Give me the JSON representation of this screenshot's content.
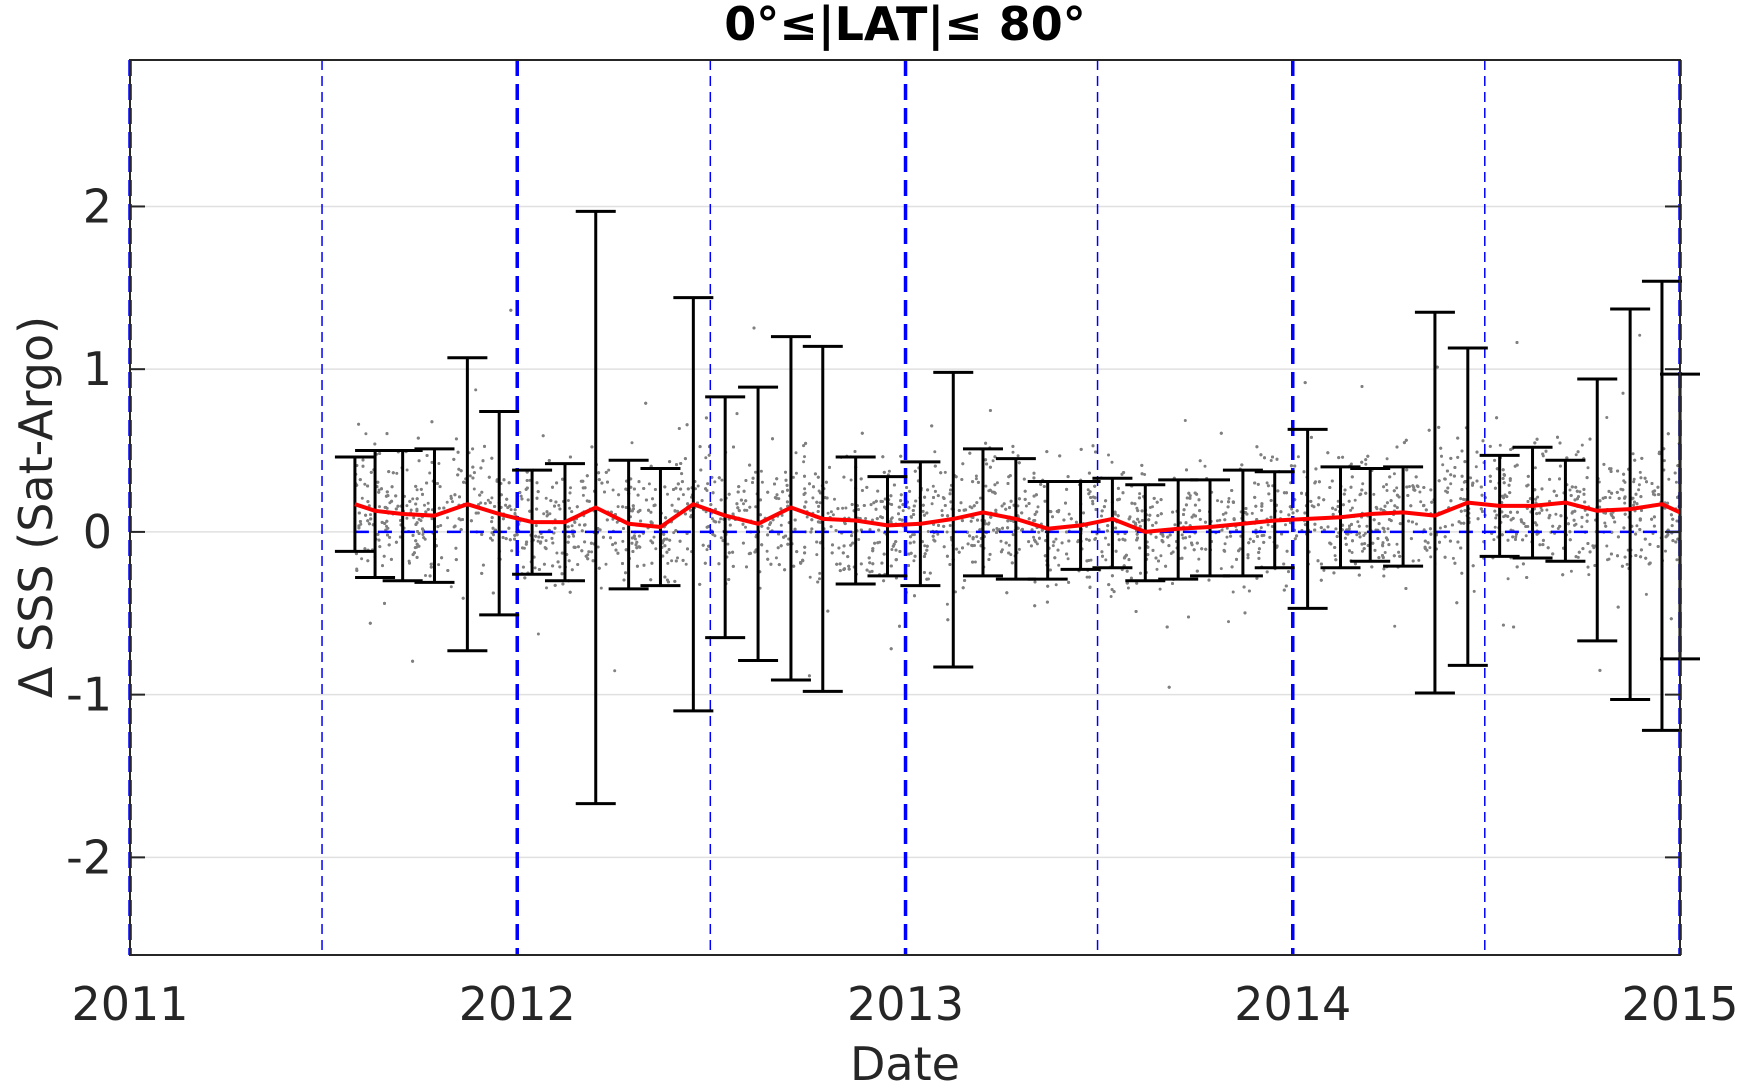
{
  "chart_data": {
    "type": "scatter",
    "title": "0°≤|LAT|≤ 80°",
    "xlabel": "Date",
    "ylabel": "Δ SSS (Sat-Argo)",
    "xlim": [
      "2011-01-01",
      "2015-01-01"
    ],
    "ylim": [
      -2.6,
      2.9
    ],
    "x_tick_labels": [
      "2011",
      "2012",
      "2013",
      "2014",
      "2015"
    ],
    "y_ticks": [
      -2,
      -1,
      0,
      1,
      2
    ],
    "y_tick_labels": [
      "-2",
      "-1",
      "0",
      "1",
      "2"
    ],
    "grid": "horizontal",
    "vertical_lines": {
      "color": "#0000ff",
      "style": "dashed",
      "years": [
        "2011-01-01",
        "2012-01-01",
        "2013-01-01",
        "2014-01-01",
        "2015-01-01"
      ],
      "half_years": [
        "2011-07-01",
        "2012-07-01",
        "2013-07-01",
        "2014-07-01"
      ]
    },
    "zero_line": {
      "y": 0,
      "color": "#0000ff",
      "style": "dashed"
    },
    "scatter_color": "#808080",
    "mean_color": "#ff0000",
    "errorbar_color": "#000000",
    "monthly": {
      "dates": [
        "2011-08-01",
        "2011-08-20",
        "2011-09-15",
        "2011-10-15",
        "2011-11-15",
        "2011-12-15",
        "2012-01-15",
        "2012-02-15",
        "2012-03-15",
        "2012-04-15",
        "2012-05-15",
        "2012-06-15",
        "2012-07-15",
        "2012-08-15",
        "2012-09-15",
        "2012-10-15",
        "2012-11-15",
        "2012-12-15",
        "2013-01-15",
        "2013-02-15",
        "2013-03-15",
        "2013-04-15",
        "2013-05-15",
        "2013-06-15",
        "2013-07-15",
        "2013-08-15",
        "2013-09-15",
        "2013-10-15",
        "2013-11-15",
        "2013-12-15",
        "2014-01-15",
        "2014-02-15",
        "2014-03-15",
        "2014-04-15",
        "2014-05-15",
        "2014-06-15",
        "2014-07-15",
        "2014-08-15",
        "2014-09-15",
        "2014-10-15",
        "2014-11-15",
        "2014-12-15",
        "2015-01-01"
      ],
      "mean": [
        0.17,
        0.13,
        0.11,
        0.1,
        0.17,
        0.11,
        0.06,
        0.06,
        0.15,
        0.05,
        0.03,
        0.17,
        0.1,
        0.05,
        0.15,
        0.08,
        0.07,
        0.04,
        0.05,
        0.08,
        0.12,
        0.08,
        0.02,
        0.04,
        0.08,
        0.0,
        0.02,
        0.03,
        0.05,
        0.07,
        0.08,
        0.09,
        0.11,
        0.12,
        0.1,
        0.18,
        0.16,
        0.16,
        0.18,
        0.13,
        0.14,
        0.17,
        0.12
      ],
      "upper": [
        0.46,
        0.5,
        0.5,
        0.51,
        1.07,
        0.74,
        0.38,
        0.42,
        1.97,
        0.44,
        0.39,
        1.44,
        0.83,
        0.89,
        1.2,
        1.14,
        0.46,
        0.34,
        0.43,
        0.98,
        0.51,
        0.45,
        0.31,
        0.31,
        0.33,
        0.29,
        0.32,
        0.32,
        0.38,
        0.37,
        0.63,
        0.4,
        0.39,
        0.4,
        1.35,
        1.13,
        0.47,
        0.52,
        0.44,
        0.94,
        1.37,
        1.54,
        0.97
      ],
      "lower": [
        -0.12,
        -0.28,
        -0.3,
        -0.31,
        -0.73,
        -0.51,
        -0.26,
        -0.3,
        -1.67,
        -0.35,
        -0.33,
        -1.1,
        -0.65,
        -0.79,
        -0.91,
        -0.98,
        -0.32,
        -0.27,
        -0.33,
        -0.83,
        -0.27,
        -0.29,
        -0.29,
        -0.23,
        -0.22,
        -0.3,
        -0.29,
        -0.27,
        -0.27,
        -0.22,
        -0.47,
        -0.22,
        -0.18,
        -0.21,
        -0.99,
        -0.82,
        -0.15,
        -0.16,
        -0.18,
        -0.67,
        -1.03,
        -1.22,
        -0.78
      ]
    }
  }
}
